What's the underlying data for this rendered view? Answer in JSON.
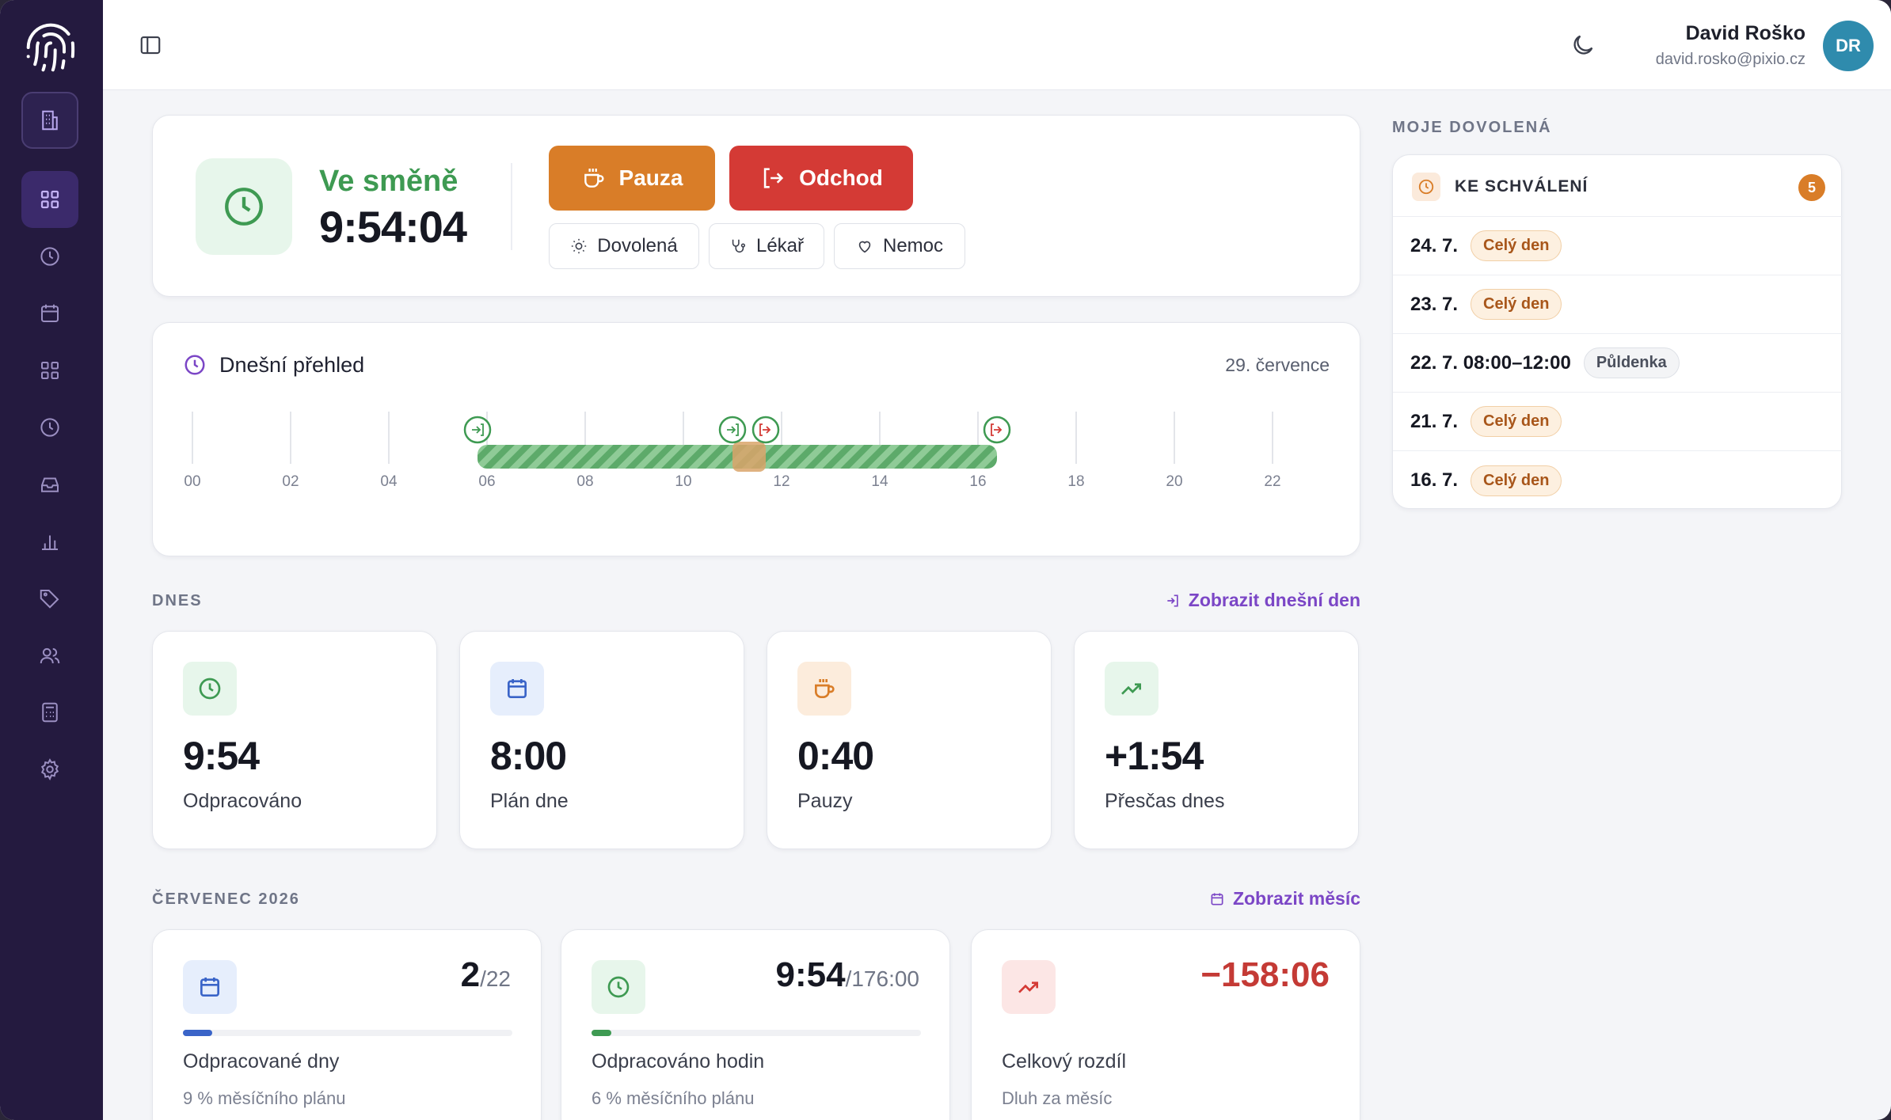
{
  "user": {
    "name": "David Roško",
    "email": "david.rosko@pixio.cz",
    "initials": "DR"
  },
  "shift": {
    "status": "Ve směně",
    "elapsed": "9:54:04",
    "pause_label": "Pauza",
    "leave_label": "Odchod",
    "vacation_label": "Dovolená",
    "doctor_label": "Lékař",
    "sick_label": "Nemoc"
  },
  "overview": {
    "title": "Dnešní přehled",
    "date": "29. července",
    "ticks": [
      "00",
      "02",
      "04",
      "06",
      "08",
      "10",
      "12",
      "14",
      "16",
      "18",
      "20",
      "22"
    ]
  },
  "today": {
    "section": "DNES",
    "link": "Zobrazit dnešní den",
    "stats": [
      {
        "value": "9:54",
        "label": "Odpracováno"
      },
      {
        "value": "8:00",
        "label": "Plán dne"
      },
      {
        "value": "0:40",
        "label": "Pauzy"
      },
      {
        "value": "+1:54",
        "label": "Přesčas dnes"
      }
    ]
  },
  "month": {
    "section": "ČERVENEC 2026",
    "link": "Zobrazit měsíc",
    "cards": [
      {
        "value": "2",
        "total": "/22",
        "label": "Odpracované dny",
        "sub": "9 % měsíčního plánu",
        "progress": 0.09
      },
      {
        "value": "9:54",
        "total": "/176:00",
        "label": "Odpracováno hodin",
        "sub": "6 % měsíčního plánu",
        "progress": 0.06
      },
      {
        "value": "−158:06",
        "total": "",
        "label": "Celkový rozdíl",
        "sub": "Dluh za měsíc"
      }
    ]
  },
  "vacation": {
    "section": "MOJE DOVOLENÁ",
    "pending_title": "KE SCHVÁLENÍ",
    "pending_count": "5",
    "items": [
      {
        "date": "24. 7.",
        "type": "Celý den"
      },
      {
        "date": "23. 7.",
        "type": "Celý den"
      },
      {
        "date": "22. 7. 08:00–12:00",
        "type": "Půldenka"
      },
      {
        "date": "21. 7.",
        "type": "Celý den"
      },
      {
        "date": "16. 7.",
        "type": "Celý den"
      }
    ]
  },
  "colors": {
    "sidebar": "#241a3f",
    "accent": "#7b46c6",
    "success": "#3e9a52",
    "warning": "#d97d28",
    "danger": "#d43a35"
  }
}
